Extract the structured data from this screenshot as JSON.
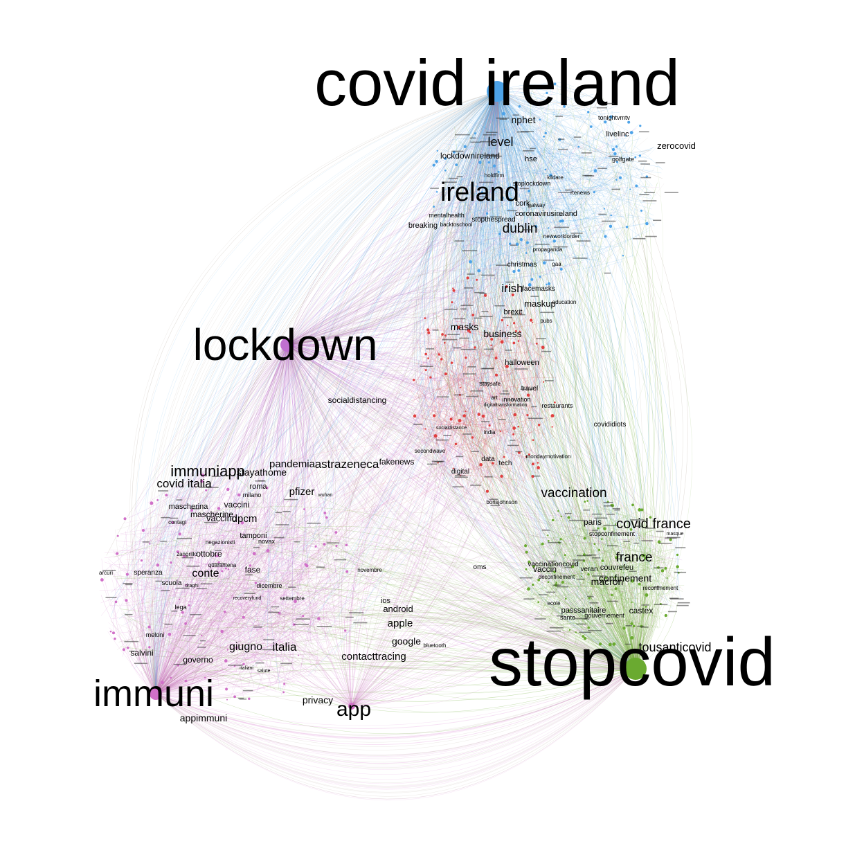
{
  "colors": {
    "ireland_cluster": "#4da3e8",
    "italy_cluster": "#d070c8",
    "france_cluster": "#6aaa30",
    "mixed_cluster": "#e04040",
    "lockdown_node": "#c070d0",
    "neutral_edges": "#a09080"
  },
  "hubs": [
    {
      "id": "covid-ireland",
      "label": "covid ireland",
      "cluster": "ireland"
    },
    {
      "id": "lockdown",
      "label": "lockdown",
      "cluster": "lockdown"
    },
    {
      "id": "immuni",
      "label": "immuni",
      "cluster": "italy"
    },
    {
      "id": "stopcovid",
      "label": "stopcovid",
      "cluster": "france"
    },
    {
      "id": "app",
      "label": "app",
      "cluster": "italy"
    }
  ],
  "labels": {
    "ireland": [
      "nphet",
      "level",
      "lockdownireland",
      "hse",
      "ireland",
      "zerocovid",
      "golfgate",
      "livelinc",
      "tonightvmtv",
      "breaking",
      "dublin",
      "cork",
      "galway",
      "stopthespread",
      "backtoschool",
      "mentalhealth",
      "newworldorder",
      "coronavirusireland",
      "christmas",
      "irish",
      "maskup",
      "facemasks",
      "brexit",
      "holdfirm",
      "stoplockdown",
      "kildare",
      "rtenews",
      "propaganda",
      "gaa",
      "pubs",
      "education"
    ],
    "mixed": [
      "masks",
      "business",
      "halloween",
      "socialdistancing",
      "travel",
      "innovation",
      "restaurants",
      "digitaltransformation",
      "socialdistance",
      "india",
      "data",
      "tech",
      "digital",
      "secondwave",
      "covididiots",
      "mondaymotivation",
      "staysafe",
      "fakenews",
      "borisjohnson",
      "art"
    ],
    "italy": [
      "immuniapp",
      "covid italia",
      "stayathome",
      "pandemia",
      "astrazeneca",
      "pfizer",
      "roma",
      "milano",
      "mascherina",
      "mascherine",
      "vaccini",
      "vaccino",
      "dpcm",
      "tamponi",
      "novax",
      "negazionisti",
      "ottobre",
      "conte",
      "fase",
      "scuola",
      "speranza",
      "dicembre",
      "novembre",
      "android",
      "ios",
      "apple",
      "google",
      "bluetooth",
      "contacttracing",
      "italia",
      "giugno",
      "governo",
      "salvini",
      "lega",
      "meloni",
      "privacy",
      "appimmuni",
      "quarantena",
      "contagi",
      "zangrillo",
      "arcuri",
      "settembre",
      "wuhan",
      "recoveryfund",
      "draghi",
      "italiani",
      "salute"
    ],
    "france": [
      "vaccination",
      "paris",
      "covid france",
      "stopconfinement",
      "france",
      "vaccinationcovid",
      "vaccin",
      "couvrefeu",
      "confinement",
      "macron",
      "veran",
      "passsanitaire",
      "castex",
      "gouvernement",
      "sante",
      "tousanticovid",
      "oms",
      "reconfinement",
      "deconfinement",
      "masque",
      "ecole"
    ]
  }
}
